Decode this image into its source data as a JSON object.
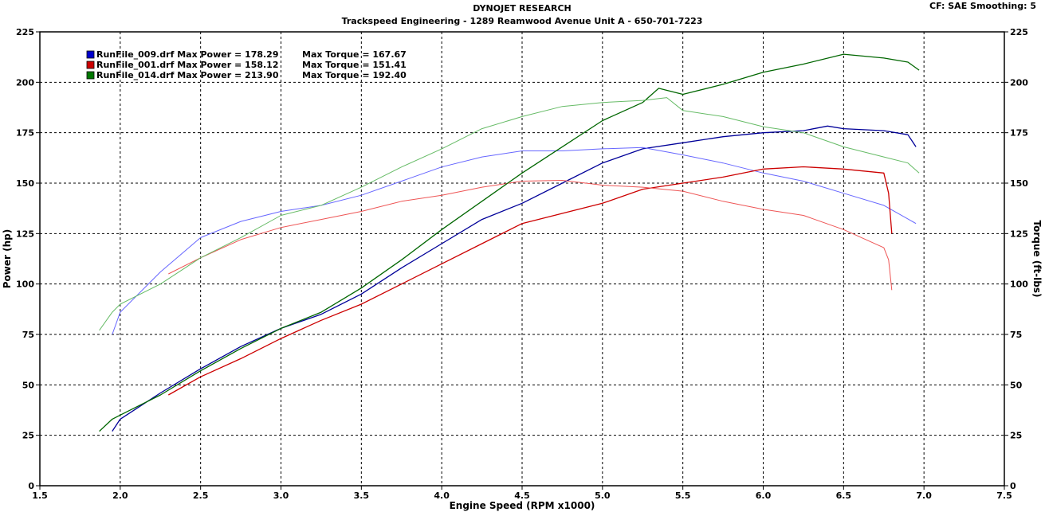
{
  "header": {
    "title": "DYNOJET RESEARCH",
    "subtitle": "Trackspeed Engineering - 1289 Reamwood Avenue Unit A - 650-701-7223",
    "cf": "CF: SAE  Smoothing: 5"
  },
  "chart_data": {
    "type": "line",
    "xlabel": "Engine Speed (RPM x1000)",
    "ylabel": "Power (hp)",
    "y2label": "Torque (ft-lbs)",
    "xlim": [
      1.5,
      7.5
    ],
    "ylim": [
      0,
      225
    ],
    "y2lim": [
      0,
      225
    ],
    "xticks": [
      "1.5",
      "2.0",
      "2.5",
      "3.0",
      "3.5",
      "4.0",
      "4.5",
      "5.0",
      "5.5",
      "6.0",
      "6.5",
      "7.0",
      "7.5"
    ],
    "yticks": [
      "0",
      "25",
      "50",
      "75",
      "100",
      "125",
      "150",
      "175",
      "200",
      "225"
    ],
    "grid": true,
    "legend": [
      {
        "file": "RunFile_009.drf",
        "power_text": "Max Power = 178.29",
        "torque_text": "Max Torque = 167.67",
        "color": "#0000cc"
      },
      {
        "file": "RunFile_001.drf",
        "power_text": "Max Power = 158.12",
        "torque_text": "Max Torque = 151.41",
        "color": "#cc0000"
      },
      {
        "file": "RunFile_014.drf",
        "power_text": "Max Power = 213.90",
        "torque_text": "Max Torque = 192.40",
        "color": "#007700"
      }
    ],
    "series": [
      {
        "name": "RunFile_009.drf",
        "kind": "power",
        "color": "#000099",
        "x": [
          1.95,
          2.0,
          2.25,
          2.5,
          2.75,
          3.0,
          3.25,
          3.5,
          3.75,
          4.0,
          4.25,
          4.5,
          4.75,
          5.0,
          5.25,
          5.5,
          5.75,
          6.0,
          6.25,
          6.4,
          6.5,
          6.75,
          6.9,
          6.95
        ],
        "y": [
          27,
          33,
          46,
          58,
          69,
          78,
          85,
          95,
          108,
          120,
          132,
          140,
          150,
          160,
          167,
          170,
          173,
          175,
          176,
          178.3,
          177,
          176,
          174,
          168
        ]
      },
      {
        "name": "RunFile_009.drf",
        "kind": "torque",
        "color": "#6666ff",
        "x": [
          1.95,
          2.0,
          2.25,
          2.5,
          2.75,
          3.0,
          3.25,
          3.5,
          3.75,
          4.0,
          4.25,
          4.5,
          4.75,
          5.0,
          5.25,
          5.5,
          5.75,
          6.0,
          6.25,
          6.5,
          6.75,
          6.95
        ],
        "y": [
          75,
          86,
          106,
          123,
          131,
          136,
          139,
          144,
          151,
          158,
          163,
          166,
          166,
          167,
          167.7,
          164,
          160,
          155,
          151,
          145,
          139,
          130
        ]
      },
      {
        "name": "RunFile_001.drf",
        "kind": "power",
        "color": "#cc0000",
        "x": [
          2.3,
          2.5,
          2.75,
          3.0,
          3.25,
          3.5,
          3.75,
          4.0,
          4.25,
          4.5,
          4.75,
          5.0,
          5.25,
          5.5,
          5.75,
          6.0,
          6.25,
          6.5,
          6.75,
          6.78,
          6.8
        ],
        "y": [
          45,
          54,
          63,
          73,
          82,
          90,
          100,
          110,
          120,
          130,
          135,
          140,
          147,
          150,
          153,
          157,
          158.1,
          157,
          155,
          145,
          125
        ]
      },
      {
        "name": "RunFile_001.drf",
        "kind": "torque",
        "color": "#ee5555",
        "x": [
          2.3,
          2.5,
          2.75,
          3.0,
          3.25,
          3.5,
          3.75,
          4.0,
          4.25,
          4.5,
          4.75,
          5.0,
          5.25,
          5.5,
          5.75,
          6.0,
          6.25,
          6.5,
          6.75,
          6.78,
          6.8
        ],
        "y": [
          105,
          113,
          122,
          128,
          132,
          136,
          141,
          144,
          148,
          151,
          151.4,
          149,
          148,
          146,
          141,
          137,
          134,
          127,
          118,
          112,
          97
        ]
      },
      {
        "name": "RunFile_014.drf",
        "kind": "power",
        "color": "#006600",
        "x": [
          1.87,
          1.95,
          2.0,
          2.25,
          2.5,
          2.75,
          3.0,
          3.25,
          3.5,
          3.75,
          4.0,
          4.25,
          4.5,
          4.75,
          5.0,
          5.25,
          5.35,
          5.5,
          5.75,
          6.0,
          6.25,
          6.5,
          6.75,
          6.9,
          6.97
        ],
        "y": [
          27,
          33,
          35,
          45,
          57,
          68,
          78,
          86,
          98,
          112,
          127,
          141,
          155,
          168,
          181,
          190,
          197,
          194,
          199,
          205,
          209,
          213.9,
          212,
          210,
          206
        ]
      },
      {
        "name": "RunFile_014.drf",
        "kind": "torque",
        "color": "#66bb66",
        "x": [
          1.87,
          1.95,
          2.0,
          2.25,
          2.5,
          2.75,
          3.0,
          3.25,
          3.5,
          3.75,
          4.0,
          4.25,
          4.5,
          4.75,
          5.0,
          5.25,
          5.4,
          5.5,
          5.75,
          6.0,
          6.25,
          6.5,
          6.75,
          6.9,
          6.97
        ],
        "y": [
          77,
          86,
          90,
          100,
          113,
          123,
          134,
          139,
          148,
          158,
          167,
          177,
          183,
          188,
          190,
          191,
          192.4,
          186,
          183,
          178,
          175,
          168,
          163,
          160,
          155
        ]
      }
    ]
  }
}
